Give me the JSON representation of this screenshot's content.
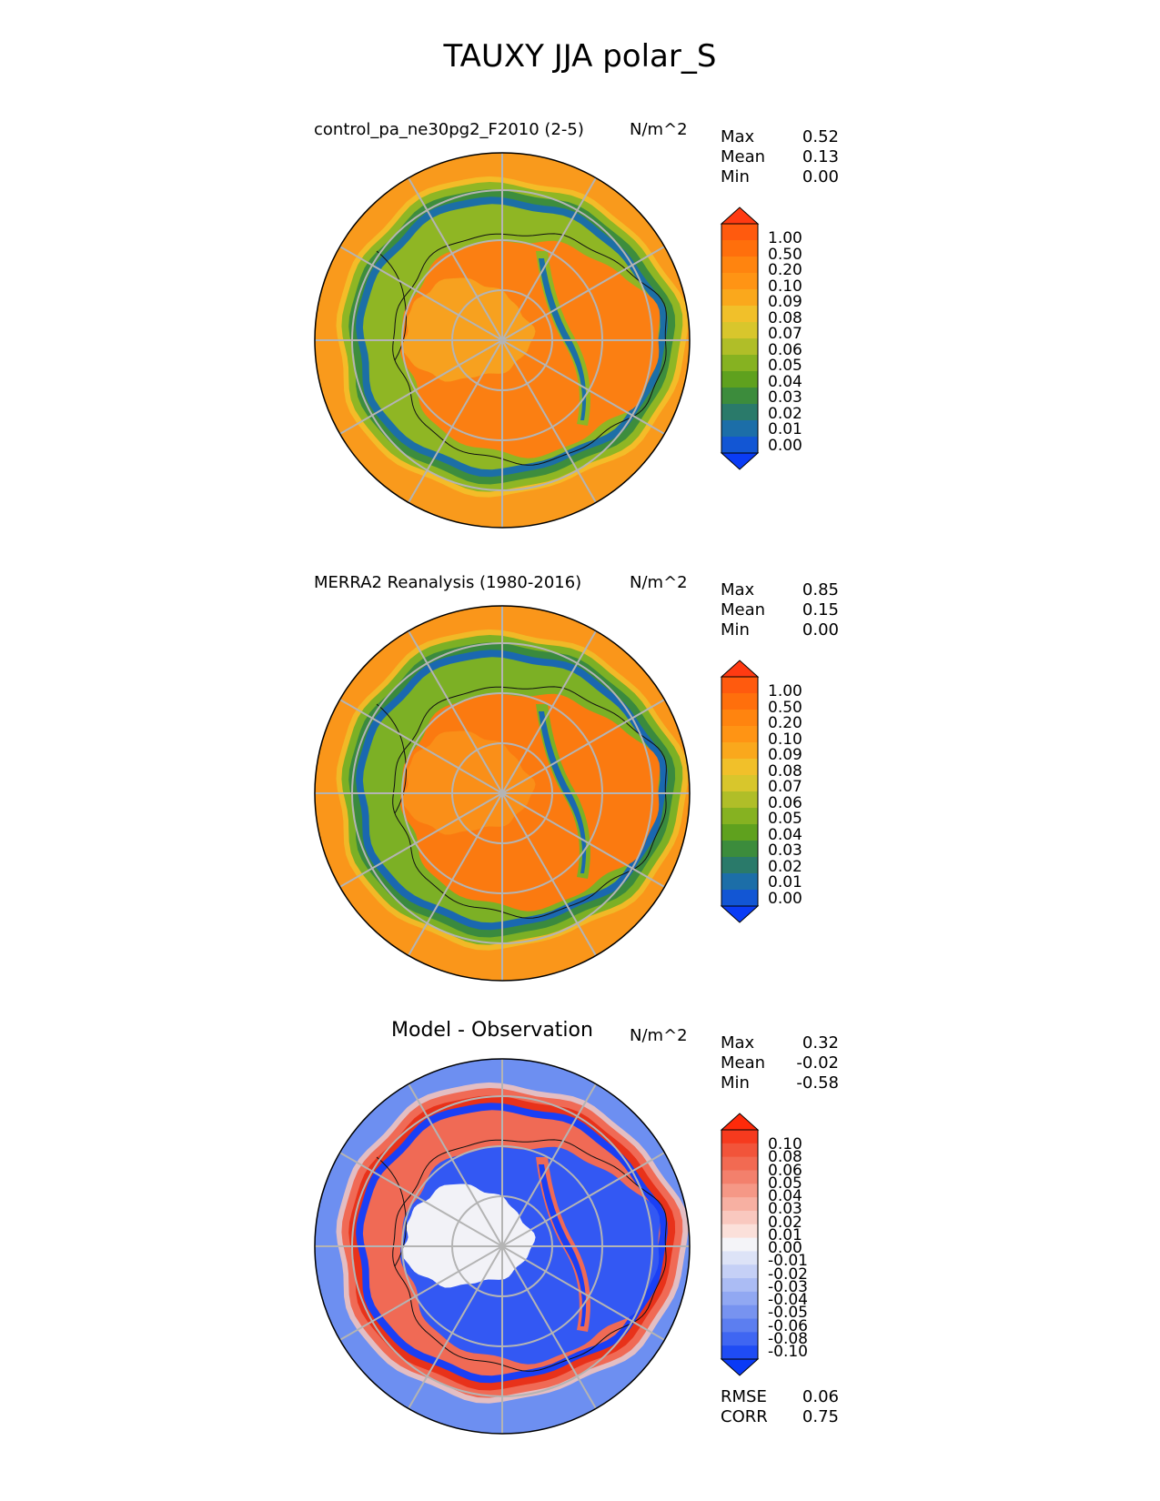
{
  "figure": {
    "title": "TAUXY JJA polar_S",
    "units": "N/m^2",
    "stat_labels": {
      "max": "Max",
      "mean": "Mean",
      "min": "Min"
    }
  },
  "panels": [
    {
      "title": "control_pa_ne30pg2_F2010 (2-5)",
      "stats": {
        "max": "0.52",
        "mean": "0.13",
        "min": "0.00"
      },
      "colorbar": {
        "labels": [
          "1.00",
          "0.50",
          "0.20",
          "0.10",
          "0.09",
          "0.08",
          "0.07",
          "0.06",
          "0.05",
          "0.04",
          "0.03",
          "0.02",
          "0.01",
          "0.00"
        ],
        "colors": [
          "#ff3a12",
          "#ff5a0e",
          "#ff6f0c",
          "#ff840f",
          "#ff9414",
          "#faa81c",
          "#f1c02a",
          "#d8c62c",
          "#b0be28",
          "#86b221",
          "#5fa11e",
          "#3c8c3c",
          "#2a7a6a",
          "#1c6ea8",
          "#1256d4",
          "#0a3cf5"
        ]
      },
      "chart_data": {
        "type": "heatmap",
        "projection": "south polar stereographic",
        "variable": "surface wind stress magnitude (JJA)",
        "units": "N/m^2",
        "max": 0.52,
        "mean": 0.13,
        "min": 0.0
      },
      "palette": {
        "ocean": "#f99a1c",
        "land": "#fb7f12",
        "inner": "#f7a11f",
        "band_high": "#f3c22a",
        "band_mid": "#8fb624",
        "band_low": "#3d8d3d",
        "band_min": "#1c6fa6"
      }
    },
    {
      "title": "MERRA2 Reanalysis (1980-2016)",
      "stats": {
        "max": "0.85",
        "mean": "0.15",
        "min": "0.00"
      },
      "colorbar": {
        "labels": [
          "1.00",
          "0.50",
          "0.20",
          "0.10",
          "0.09",
          "0.08",
          "0.07",
          "0.06",
          "0.05",
          "0.04",
          "0.03",
          "0.02",
          "0.01",
          "0.00"
        ],
        "colors": [
          "#ff3a12",
          "#ff5a0e",
          "#ff6f0c",
          "#ff840f",
          "#ff9414",
          "#faa81c",
          "#f1c02a",
          "#d8c62c",
          "#b0be28",
          "#86b221",
          "#5fa11e",
          "#3c8c3c",
          "#2a7a6a",
          "#1c6ea8",
          "#1256d4",
          "#0a3cf5"
        ]
      },
      "chart_data": {
        "type": "heatmap",
        "projection": "south polar stereographic",
        "variable": "surface wind stress magnitude (JJA)",
        "units": "N/m^2",
        "max": 0.85,
        "mean": 0.15,
        "min": 0.0
      },
      "palette": {
        "ocean": "#fa961a",
        "land": "#fb7a10",
        "inner": "#fa8f18",
        "band_high": "#efc02a",
        "band_mid": "#7cb025",
        "band_low": "#3a8a3e",
        "band_min": "#1a68b0"
      }
    },
    {
      "title": "Model - Observation",
      "stats": {
        "max": "0.32",
        "mean": "-0.02",
        "min": "-0.58"
      },
      "colorbar": {
        "labels": [
          "0.10",
          "0.08",
          "0.06",
          "0.05",
          "0.04",
          "0.03",
          "0.02",
          "0.01",
          "0.00",
          "-0.01",
          "-0.02",
          "-0.03",
          "-0.04",
          "-0.05",
          "-0.06",
          "-0.08",
          "-0.10"
        ],
        "colors": [
          "#ff2a0a",
          "#f63a1e",
          "#f2543a",
          "#f26a52",
          "#f3806c",
          "#f59886",
          "#f7b0a2",
          "#f9c8bf",
          "#fbe0da",
          "#f4f4f8",
          "#dde3f7",
          "#c5d0f6",
          "#abbcf4",
          "#91a8f2",
          "#7793f0",
          "#5c7ef0",
          "#3f66f2",
          "#1f4cf4",
          "#0a3af6"
        ]
      },
      "chart_data": {
        "type": "heatmap",
        "projection": "south polar stereographic",
        "variable": "wind stress difference, model minus observation (JJA)",
        "units": "N/m^2",
        "max": 0.32,
        "mean": -0.02,
        "min": -0.58
      },
      "palette": {
        "ocean": "#6d8ff1",
        "land": "#3358f3",
        "inner": "#f2f2f7",
        "band_high": "#f8c7bb",
        "band_mid": "#f06a55",
        "band_low": "#e8321a",
        "band_min": "#1a3ff5"
      }
    }
  ],
  "diff_metrics": {
    "rmse_label": "RMSE",
    "rmse": "0.06",
    "corr_label": "CORR",
    "corr": "0.75"
  }
}
